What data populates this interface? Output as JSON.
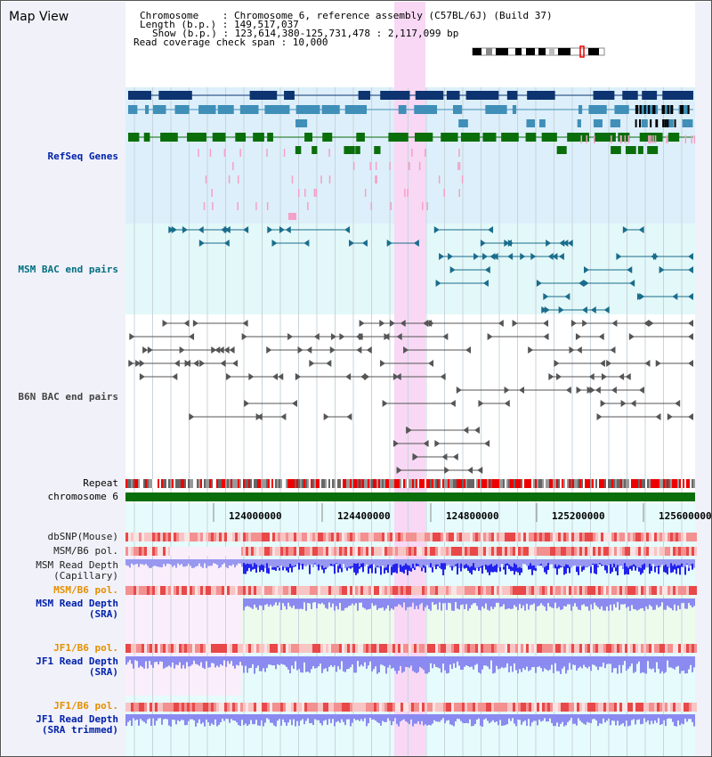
{
  "view_title": "Map View",
  "info": {
    "chromosome": "Chromosome    : Chromosome 6, reference assembly (C57BL/6J) (Build 37)",
    "length": "Length (b.p.) : 149,517,037",
    "show": "Show (b.p.) : 123,614,380-125,731,478 : 2,117,099 bp",
    "span": "Read coverage check span : 10,000"
  },
  "tracks": {
    "refseq": "RefSeq Genes",
    "msm_bac": "MSM BAC end pairs",
    "b6n_bac": "B6N BAC end pairs",
    "repeat": "Repeat",
    "chromosome": "chromosome 6",
    "dbsnp": "dbSNP(Mouse)",
    "msm_b6_pol_1": "MSM/B6 pol.",
    "msm_read_depth_cap": [
      "MSM Read Depth",
      "(Capillary)"
    ],
    "msm_b6_pol_2": "MSM/B6 pol.",
    "msm_read_depth_sra": [
      "MSM Read Depth",
      "(SRA)"
    ],
    "jf1_b6_pol_1": "JF1/B6 pol.",
    "jf1_read_depth_sra": [
      "JF1 Read Depth",
      "(SRA)"
    ],
    "jf1_b6_pol_2": "JF1/B6 pol.",
    "jf1_read_depth_trim": [
      "JF1 Read Depth",
      "(SRA trimmed)"
    ]
  },
  "axis_ticks": [
    "124000000",
    "124400000",
    "124800000",
    "125200000",
    "125600000"
  ],
  "colors": {
    "refseq_dark": "#0d3470",
    "refseq_mid": "#3f8fb8",
    "refseq_green": "#0a6e0a",
    "pink_gene": "#f5a0c8",
    "msm_bac": "#1a6c8c",
    "b6n_bac": "#555555",
    "highlight": "#f8d8f4",
    "label_blue": "#0022aa",
    "label_teal": "#006f80",
    "label_orange": "#e39000",
    "depth_blue": "#2222ee",
    "depth_light": "#8a8af0"
  }
}
